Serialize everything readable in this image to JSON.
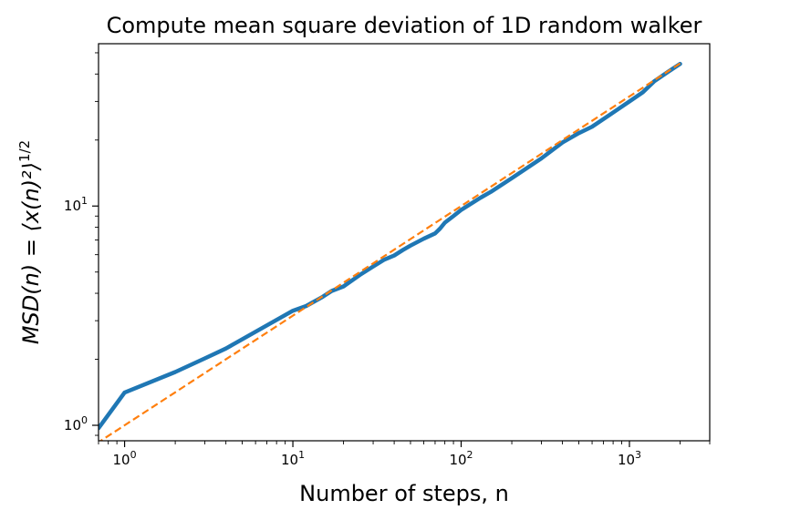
{
  "chart_data": {
    "type": "line",
    "title": "Compute mean square deviation of 1D random walker",
    "xlabel": "Number of steps, n",
    "ylabel_main": "MSD(n) = ⟨x(n)²⟩",
    "ylabel_sup": "1/2",
    "xscale": "log",
    "yscale": "log",
    "xlim": [
      0.7,
      3000
    ],
    "ylim": [
      0.85,
      55
    ],
    "x_ticks": [
      {
        "base": "10",
        "exp": "0",
        "value": 1
      },
      {
        "base": "10",
        "exp": "1",
        "value": 10
      },
      {
        "base": "10",
        "exp": "2",
        "value": 100
      },
      {
        "base": "10",
        "exp": "3",
        "value": 1000
      }
    ],
    "y_ticks": [
      {
        "base": "10",
        "exp": "0",
        "value": 1
      },
      {
        "base": "10",
        "exp": "1",
        "value": 10
      }
    ],
    "grid": false,
    "legend": "none",
    "series": [
      {
        "color": "#1f77b4",
        "style": "solid",
        "points": [
          [
            0.7,
            0.97
          ],
          [
            1,
            1.41
          ],
          [
            2,
            1.75
          ],
          [
            3,
            2.02
          ],
          [
            4,
            2.24
          ],
          [
            6,
            2.67
          ],
          [
            10,
            3.33
          ],
          [
            12,
            3.5
          ],
          [
            15,
            3.85
          ],
          [
            17,
            4.1
          ],
          [
            20,
            4.3
          ],
          [
            25,
            4.85
          ],
          [
            30,
            5.3
          ],
          [
            35,
            5.7
          ],
          [
            40,
            5.95
          ],
          [
            45,
            6.3
          ],
          [
            50,
            6.6
          ],
          [
            60,
            7.1
          ],
          [
            70,
            7.5
          ],
          [
            75,
            7.9
          ],
          [
            80,
            8.4
          ],
          [
            90,
            9.0
          ],
          [
            100,
            9.6
          ],
          [
            130,
            10.9
          ],
          [
            150,
            11.6
          ],
          [
            200,
            13.4
          ],
          [
            300,
            16.5
          ],
          [
            400,
            19.5
          ],
          [
            500,
            21.5
          ],
          [
            600,
            23.0
          ],
          [
            800,
            26.7
          ],
          [
            1000,
            30.0
          ],
          [
            1200,
            33.0
          ],
          [
            1400,
            37.0
          ],
          [
            1700,
            41.0
          ],
          [
            2000,
            44.5
          ]
        ]
      },
      {
        "color": "#ff7f0e",
        "style": "dashed",
        "points": [
          [
            0.6,
            0.7746
          ],
          [
            1,
            1
          ],
          [
            2,
            1.4142
          ],
          [
            5,
            2.2361
          ],
          [
            10,
            3.1623
          ],
          [
            20,
            4.4721
          ],
          [
            50,
            7.0711
          ],
          [
            100,
            10
          ],
          [
            200,
            14.1421
          ],
          [
            500,
            22.3607
          ],
          [
            1000,
            31.6228
          ],
          [
            2000,
            44.7214
          ]
        ]
      }
    ]
  }
}
